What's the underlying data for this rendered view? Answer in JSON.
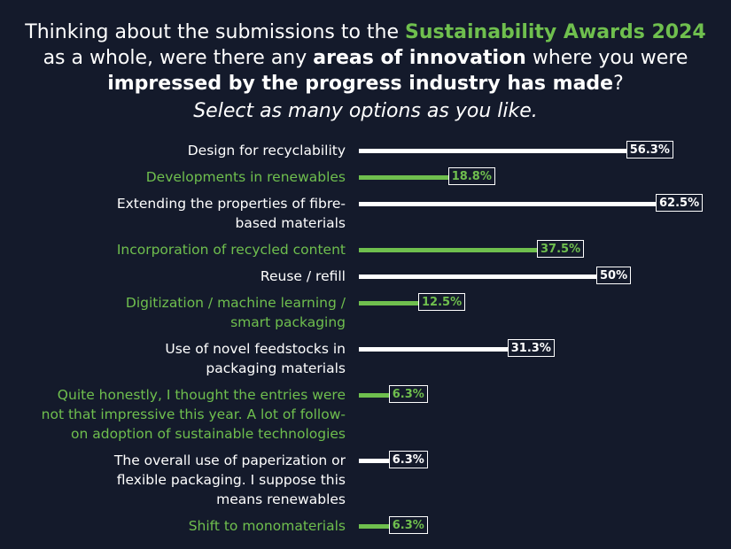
{
  "chart_data": {
    "type": "bar",
    "orientation": "horizontal",
    "title": [
      "Thinking about the submissions to the ",
      "Sustainability Awards 2024",
      " as a whole, were there any ",
      "areas of innovation",
      " where you were ",
      "impressed by the progress industry has made",
      "?"
    ],
    "subtitle": "Select as many options as you like.",
    "categories": [
      "Design for recyclability",
      "Developments in renewables",
      "Extending the properties of fibre-\nbased materials",
      "Incorporation of recycled content",
      "Reuse / refill",
      "Digitization / machine learning /\nsmart packaging",
      "Use of novel feedstocks in\npackaging materials",
      "Quite honestly, I thought the entries were\nnot that impressive this year. A lot of follow-\non adoption of sustainable technologies",
      "The overall use of paperization or\nflexible packaging. I suppose this\nmeans renewables",
      "Shift to monomaterials"
    ],
    "values": [
      56.3,
      18.8,
      62.5,
      37.5,
      50,
      12.5,
      31.3,
      6.3,
      6.3,
      6.3
    ],
    "value_labels": [
      "56.3%",
      "18.8%",
      "62.5%",
      "37.5%",
      "50%",
      "12.5%",
      "31.3%",
      "6.3%",
      "6.3%",
      "6.3%"
    ],
    "colors": [
      "#ffffff",
      "#6fbf4e",
      "#ffffff",
      "#6fbf4e",
      "#ffffff",
      "#6fbf4e",
      "#ffffff",
      "#6fbf4e",
      "#ffffff",
      "#6fbf4e"
    ]
  }
}
